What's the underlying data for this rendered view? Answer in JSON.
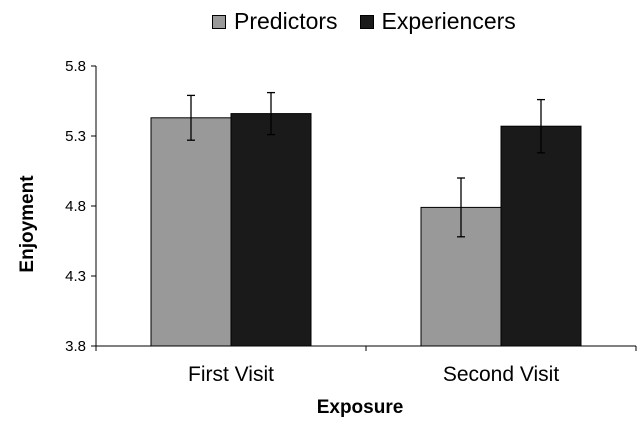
{
  "chart_data": {
    "type": "bar",
    "title": "",
    "xlabel": "Exposure",
    "ylabel": "Enjoyment",
    "ylim": [
      3.8,
      5.8
    ],
    "yticks": [
      "3.8",
      "4.3",
      "4.8",
      "5.3",
      "5.8"
    ],
    "categories": [
      "First Visit",
      "Second Visit"
    ],
    "series": [
      {
        "name": "Predictors",
        "color": "#999999",
        "values": [
          5.43,
          4.79
        ],
        "error": [
          0.16,
          0.21
        ]
      },
      {
        "name": "Experiencers",
        "color": "#1a1a1a",
        "values": [
          5.46,
          5.37
        ],
        "error": [
          0.15,
          0.19
        ]
      }
    ],
    "legend": "top-center",
    "grid": false
  }
}
